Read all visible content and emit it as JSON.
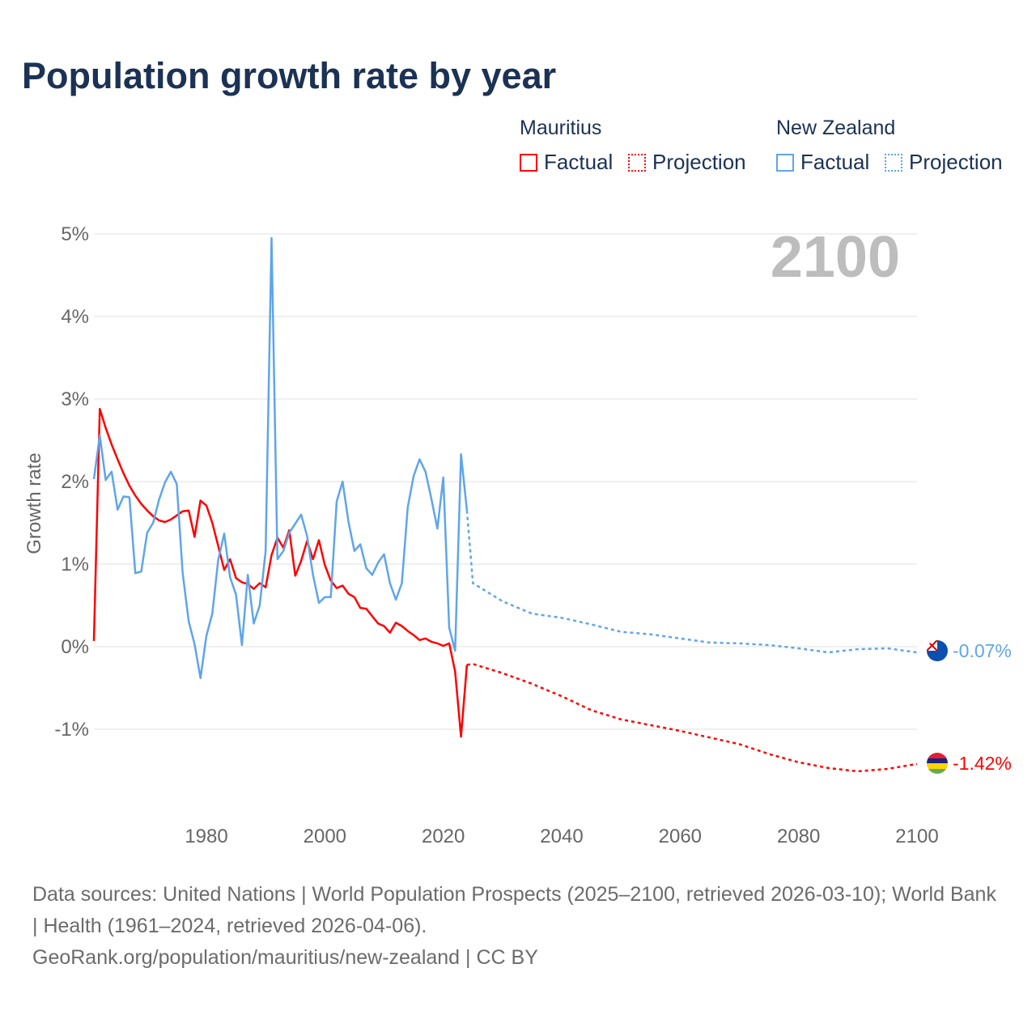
{
  "title": "Population growth rate by year",
  "legend": {
    "groups": [
      {
        "name": "Mauritius",
        "color": "#ff0000",
        "factual": "Factual",
        "projection": "Projection"
      },
      {
        "name": "New Zealand",
        "color": "#5fa5ea",
        "factual": "Factual",
        "projection": "Projection"
      }
    ]
  },
  "footer": {
    "line1": "Data sources: United Nations | World Population Prospects (2025–2100, retrieved 2026-03-10); World Bank | Health (1961–2024, retrieved 2026-04-06).",
    "line2": "GeoRank.org/population/mauritius/new-zealand | CC BY"
  },
  "chart_data": {
    "type": "line",
    "title": "Population growth rate by year",
    "ylabel": "Growth rate",
    "xlim": [
      1961,
      2100
    ],
    "ylim": [
      -2,
      5
    ],
    "xticks": [
      1980,
      2000,
      2020,
      2040,
      2060,
      2080,
      2100
    ],
    "yticks": [
      {
        "v": 5,
        "label": "5%"
      },
      {
        "v": 4,
        "label": "4%"
      },
      {
        "v": 3,
        "label": "3%"
      },
      {
        "v": 2,
        "label": "2%"
      },
      {
        "v": 1,
        "label": "1%"
      },
      {
        "v": 0,
        "label": "0%"
      },
      {
        "v": -1,
        "label": "-1%"
      }
    ],
    "year_label": "2100",
    "series": [
      {
        "name": "Mauritius",
        "color": "#ff0000",
        "end_label": "-1.42%",
        "factual_start": 1961,
        "factual": [
          0.07,
          2.88,
          2.65,
          2.45,
          2.27,
          2.1,
          1.95,
          1.83,
          1.73,
          1.65,
          1.58,
          1.53,
          1.51,
          1.54,
          1.59,
          1.64,
          1.65,
          1.33,
          1.77,
          1.71,
          1.5,
          1.22,
          0.93,
          1.06,
          0.83,
          0.78,
          0.76,
          0.7,
          0.77,
          0.72,
          1.11,
          1.32,
          1.2,
          1.41,
          0.86,
          1.04,
          1.28,
          1.06,
          1.29,
          0.99,
          0.8,
          0.71,
          0.74,
          0.64,
          0.6,
          0.47,
          0.46,
          0.37,
          0.28,
          0.25,
          0.17,
          0.29,
          0.25,
          0.19,
          0.14,
          0.08,
          0.1,
          0.06,
          0.04,
          0.01,
          0.04,
          -0.3,
          -1.09,
          -0.22
        ],
        "projection": [
          [
            2024,
            -0.22
          ],
          [
            2025,
            -0.21
          ],
          [
            2030,
            -0.32
          ],
          [
            2035,
            -0.45
          ],
          [
            2040,
            -0.6
          ],
          [
            2045,
            -0.77
          ],
          [
            2050,
            -0.88
          ],
          [
            2055,
            -0.95
          ],
          [
            2060,
            -1.02
          ],
          [
            2065,
            -1.1
          ],
          [
            2070,
            -1.18
          ],
          [
            2075,
            -1.3
          ],
          [
            2080,
            -1.4
          ],
          [
            2085,
            -1.47
          ],
          [
            2090,
            -1.51
          ],
          [
            2095,
            -1.48
          ],
          [
            2100,
            -1.42
          ]
        ]
      },
      {
        "name": "New Zealand",
        "color": "#5fa5ea",
        "end_label": "-0.07%",
        "factual_start": 1961,
        "factual": [
          2.03,
          2.56,
          2.02,
          2.12,
          1.66,
          1.82,
          1.81,
          0.89,
          0.91,
          1.38,
          1.5,
          1.78,
          1.99,
          2.12,
          1.97,
          0.89,
          0.31,
          0.03,
          -0.38,
          0.13,
          0.4,
          1.05,
          1.37,
          0.84,
          0.63,
          0.02,
          0.87,
          0.28,
          0.5,
          1.16,
          4.95,
          1.06,
          1.16,
          1.38,
          1.49,
          1.6,
          1.34,
          0.87,
          0.53,
          0.6,
          0.6,
          1.76,
          2.0,
          1.51,
          1.16,
          1.24,
          0.95,
          0.87,
          1.02,
          1.12,
          0.77,
          0.57,
          0.77,
          1.69,
          2.07,
          2.27,
          2.12,
          1.79,
          1.43,
          2.05,
          0.23,
          -0.05,
          2.33,
          1.65
        ],
        "projection": [
          [
            2024,
            1.65
          ],
          [
            2025,
            0.77
          ],
          [
            2030,
            0.55
          ],
          [
            2035,
            0.4
          ],
          [
            2040,
            0.35
          ],
          [
            2045,
            0.27
          ],
          [
            2050,
            0.18
          ],
          [
            2055,
            0.15
          ],
          [
            2060,
            0.1
          ],
          [
            2065,
            0.05
          ],
          [
            2070,
            0.04
          ],
          [
            2075,
            0.02
          ],
          [
            2080,
            -0.02
          ],
          [
            2085,
            -0.07
          ],
          [
            2090,
            -0.03
          ],
          [
            2095,
            -0.02
          ],
          [
            2100,
            -0.07
          ]
        ]
      }
    ]
  }
}
